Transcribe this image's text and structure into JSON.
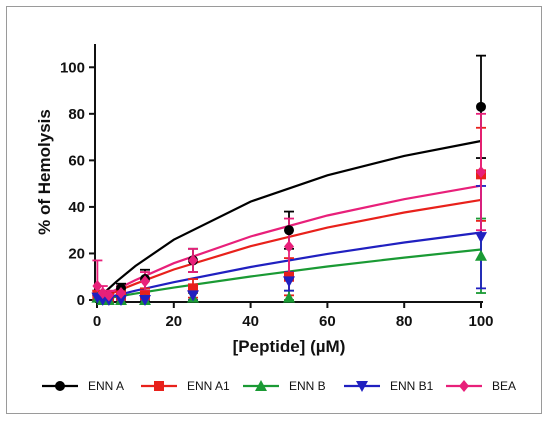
{
  "chart_data": {
    "type": "scatter",
    "title": "",
    "xlabel": "[Peptide] (µM)",
    "ylabel": "% of Hemolysis",
    "xlim": [
      0,
      100
    ],
    "ylim": [
      0,
      110
    ],
    "xticks": [
      0,
      20,
      40,
      60,
      80,
      100
    ],
    "yticks": [
      0,
      20,
      40,
      60,
      80,
      100
    ],
    "grid": false,
    "legend_position": "bottom",
    "x": [
      0.1,
      1.5,
      3.1,
      6.25,
      12.5,
      25,
      50,
      100
    ],
    "series": [
      {
        "name": "ENN A",
        "color": "#000000",
        "marker": "circle",
        "values": [
          2,
          1,
          1,
          5,
          9,
          17,
          30,
          83
        ],
        "errors": [
          2,
          2,
          2,
          2,
          4,
          5,
          8,
          22
        ],
        "fit": [
          0,
          1.04,
          2.05,
          4.04,
          7.82,
          14.6,
          25.9,
          42.3,
          53.6,
          61.9,
          68.3
        ]
      },
      {
        "name": "ENN A1",
        "color": "#e8211b",
        "marker": "square",
        "values": [
          2,
          1,
          1,
          2,
          2,
          5,
          10,
          54
        ],
        "errors": [
          2,
          2,
          2,
          2,
          3,
          4,
          8,
          20
        ],
        "fit": [
          0,
          0.47,
          0.93,
          1.84,
          3.61,
          6.98,
          13.1,
          23.1,
          31.1,
          37.6,
          43.0
        ]
      },
      {
        "name": "ENN B",
        "color": "#1a9a34",
        "marker": "triangle-up",
        "values": [
          1,
          0,
          0,
          0,
          0,
          1,
          1,
          19
        ],
        "errors": [
          1,
          1,
          1,
          1,
          1,
          2,
          3,
          16
        ],
        "fit": [
          0,
          0.18,
          0.35,
          0.7,
          1.39,
          2.74,
          5.33,
          10.1,
          14.4,
          18.2,
          21.7
        ]
      },
      {
        "name": "ENN B1",
        "color": "#2020c0",
        "marker": "triangle-down",
        "values": [
          1,
          0,
          0,
          0,
          0,
          2,
          8,
          27
        ],
        "errors": [
          1,
          1,
          1,
          1,
          1,
          2,
          4,
          22
        ],
        "fit": [
          0,
          0.26,
          0.52,
          1.03,
          2.04,
          3.99,
          7.66,
          14.2,
          19.8,
          24.7,
          29.0
        ]
      },
      {
        "name": "BEA",
        "color": "#e8207a",
        "marker": "diamond",
        "values": [
          6,
          3,
          2,
          3,
          8,
          17,
          23,
          55
        ],
        "errors": [
          11,
          3,
          2,
          3,
          4,
          5,
          12,
          25
        ],
        "fit": [
          0,
          0.58,
          1.15,
          2.28,
          4.47,
          8.57,
          15.8,
          27.3,
          36.3,
          43.3,
          49.1
        ]
      }
    ]
  }
}
